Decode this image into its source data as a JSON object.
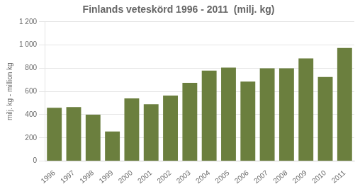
{
  "chart_data": {
    "type": "bar",
    "title": "Finlands veteskörd 1996 - 2011  (milj. kg)",
    "ylabel": "milj. kg - million kg",
    "categories": [
      "1996",
      "1997",
      "1998",
      "1999",
      "2000",
      "2001",
      "2002",
      "2003",
      "2004",
      "2005",
      "2006",
      "2007",
      "2008",
      "2009",
      "2010",
      "2011"
    ],
    "values": [
      460,
      465,
      400,
      255,
      540,
      490,
      565,
      675,
      780,
      805,
      685,
      800,
      800,
      885,
      725,
      975
    ],
    "color": "#6b7f3e",
    "ylim": [
      0,
      1200
    ],
    "yticks": [
      0,
      200,
      400,
      600,
      800,
      {
        "value": 1000,
        "label": "1 000"
      },
      {
        "value": 1200,
        "label": "1 200"
      }
    ],
    "grid": true
  }
}
